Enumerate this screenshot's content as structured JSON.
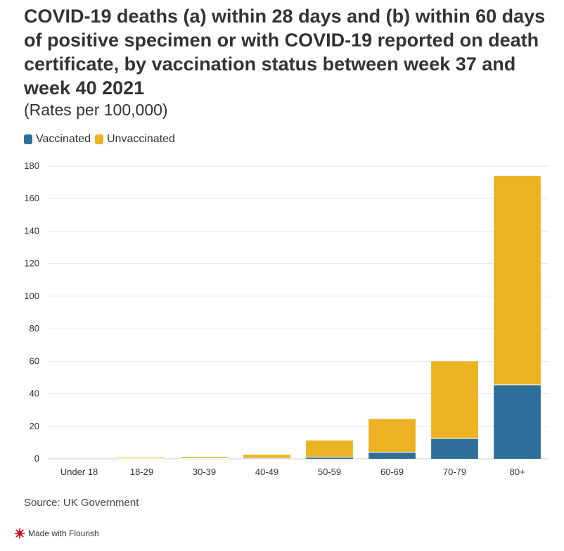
{
  "header": {
    "title": "COVID-19 deaths (a) within 28 days and (b) within 60 days of positive specimen or with COVID-19 reported on death certificate, by vaccination status between week 37 and week 40 2021",
    "subtitle": "(Rates per 100,000)"
  },
  "footer": {
    "source": "Source: UK Government",
    "flourish_label": "Made with Flourish"
  },
  "colors": {
    "vaccinated": "#2d6f98",
    "unvaccinated": "#ebb324",
    "flourish_icon": "#d0021b"
  },
  "chart_data": {
    "type": "bar",
    "stacked": true,
    "categories": [
      "Under 18",
      "18-29",
      "30-39",
      "40-49",
      "50-59",
      "60-69",
      "70-79",
      "80+"
    ],
    "series": [
      {
        "name": "Vaccinated",
        "values": [
          0,
          0.1,
          0.2,
          0.3,
          1.0,
          4.0,
          12.5,
          45.5
        ]
      },
      {
        "name": "Unvaccinated",
        "values": [
          0,
          0.6,
          0.8,
          2.2,
          10.3,
          20.5,
          47.5,
          128.5
        ]
      }
    ],
    "yticks": [
      "0",
      "20",
      "40",
      "60",
      "80",
      "100",
      "120",
      "140",
      "160",
      "180"
    ],
    "ylim": [
      0,
      180
    ],
    "grid": true,
    "legend_position": "top-left"
  }
}
